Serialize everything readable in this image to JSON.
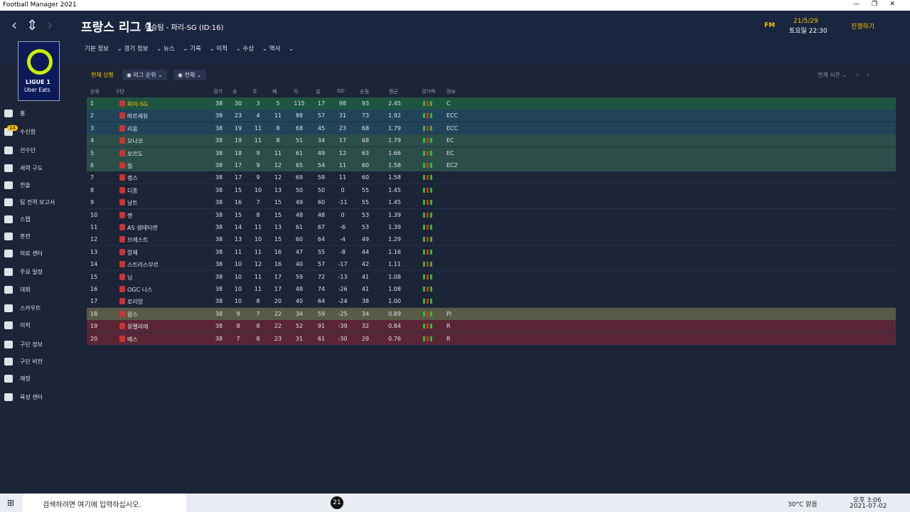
{
  "window": {
    "title": "Football Manager 2021"
  },
  "header": {
    "title": "프랑스 리그 1",
    "subtitle": "우승팀 - 파리-SG (ID:16)",
    "date": "21/5/29",
    "time": "토요일 22:30",
    "fm": "FM",
    "continue": "진행하기"
  },
  "nav": [
    "기본 정보",
    "경기 정보",
    "뉴스",
    "기록",
    "이적",
    "수상",
    "역사"
  ],
  "logo": {
    "name": "LIGUE 1",
    "sponsor": "Uber Eats"
  },
  "sidebar": {
    "items": [
      "홈",
      "수신함",
      "선수단",
      "세력 구도",
      "전술",
      "팀 전력 보고서",
      "스탭",
      "훈련",
      "의료 센터",
      "주요 일정",
      "대회",
      "스카우트",
      "이적",
      "구단 정보",
      "구단 비전",
      "재정",
      "육성 센터"
    ],
    "badge": "14"
  },
  "toolbar": {
    "section": "현재 상황",
    "view": "리그 순위",
    "filter": "전체",
    "season": "현재 시즌"
  },
  "table": {
    "columns": [
      "순위",
      "구단",
      "경기",
      "승",
      "무",
      "패",
      "득",
      "실",
      "GD",
      "승점",
      "평균",
      "경기력",
      "정보"
    ],
    "rows": [
      [
        "1",
        "파리-SG",
        "38",
        "30",
        "3",
        "5",
        "115",
        "17",
        "98",
        "93",
        "2.45",
        "C"
      ],
      [
        "2",
        "마르세유",
        "38",
        "23",
        "4",
        "11",
        "88",
        "57",
        "31",
        "73",
        "1.92",
        "ECC"
      ],
      [
        "3",
        "리옹",
        "38",
        "19",
        "11",
        "8",
        "68",
        "45",
        "23",
        "68",
        "1.79",
        "ECC"
      ],
      [
        "4",
        "모나코",
        "38",
        "19",
        "11",
        "8",
        "51",
        "34",
        "17",
        "68",
        "1.79",
        "EC"
      ],
      [
        "5",
        "보르도",
        "38",
        "18",
        "9",
        "11",
        "61",
        "49",
        "12",
        "63",
        "1.66",
        "EC"
      ],
      [
        "6",
        "릴",
        "38",
        "17",
        "9",
        "12",
        "65",
        "54",
        "11",
        "60",
        "1.58",
        "EC2"
      ],
      [
        "7",
        "랭스",
        "38",
        "17",
        "9",
        "12",
        "69",
        "58",
        "11",
        "60",
        "1.58"
      ],
      [
        "8",
        "디종",
        "38",
        "15",
        "10",
        "13",
        "50",
        "50",
        "0",
        "55",
        "1.45"
      ],
      [
        "9",
        "낭트",
        "38",
        "16",
        "7",
        "15",
        "49",
        "60",
        "-11",
        "55",
        "1.45"
      ],
      [
        "10",
        "렌",
        "38",
        "15",
        "8",
        "15",
        "48",
        "48",
        "0",
        "53",
        "1.39"
      ],
      [
        "11",
        "AS 생테티엔",
        "38",
        "14",
        "11",
        "13",
        "61",
        "67",
        "-6",
        "53",
        "1.39"
      ],
      [
        "12",
        "브레스트",
        "38",
        "13",
        "10",
        "15",
        "60",
        "64",
        "-4",
        "49",
        "1.29"
      ],
      [
        "13",
        "앙제",
        "38",
        "11",
        "11",
        "16",
        "47",
        "55",
        "-8",
        "44",
        "1.16"
      ],
      [
        "14",
        "스트라스부르",
        "38",
        "10",
        "12",
        "16",
        "40",
        "57",
        "-17",
        "42",
        "1.11"
      ],
      [
        "15",
        "님",
        "38",
        "10",
        "11",
        "17",
        "59",
        "72",
        "-13",
        "41",
        "1.08"
      ],
      [
        "16",
        "OGC 니스",
        "38",
        "10",
        "11",
        "17",
        "48",
        "74",
        "-26",
        "41",
        "1.08"
      ],
      [
        "17",
        "로리앙",
        "38",
        "10",
        "8",
        "20",
        "40",
        "64",
        "-24",
        "38",
        "1.00"
      ],
      [
        "18",
        "랑스",
        "38",
        "9",
        "7",
        "22",
        "34",
        "59",
        "-25",
        "34",
        "0.89",
        "Pl"
      ],
      [
        "19",
        "몽펠리에",
        "38",
        "8",
        "8",
        "22",
        "52",
        "91",
        "-39",
        "32",
        "0.84",
        "R"
      ],
      [
        "20",
        "메스",
        "38",
        "7",
        "8",
        "23",
        "31",
        "61",
        "-30",
        "29",
        "0.76",
        "R"
      ]
    ]
  },
  "taskbar": {
    "search": "검색하려면 여기에 입력하십시오.",
    "app": "21",
    "weather": "30°C 맑음",
    "time": "오후 3:06",
    "date": "2021-07-02"
  }
}
